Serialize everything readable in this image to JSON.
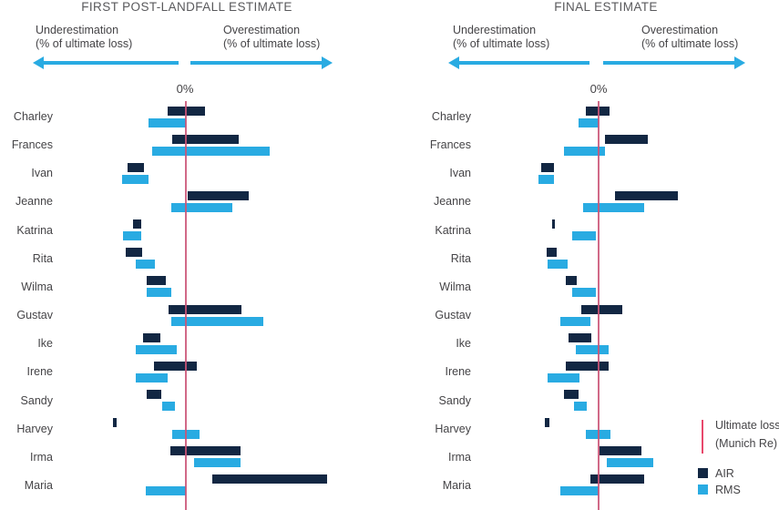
{
  "colors": {
    "air": "#122743",
    "rms": "#29abe2",
    "arrow": "#29abe2",
    "ultimate_loss_line": "#e8486b",
    "axis_zero_line": "#cb5476",
    "title_text": "#59595c",
    "label_text": "#454447"
  },
  "legend": {
    "ultimate_loss_line1": "Ultimate loss",
    "ultimate_loss_line2": "(Munich Re)",
    "air_label": "AIR",
    "rms_label": "RMS"
  },
  "chart_data": [
    {
      "type": "bar",
      "variant": "horizontal-diverging",
      "title": "FIRST POST-LANDFALL ESTIMATE",
      "zero_label": "0%",
      "axis_label_left": [
        "Underestimation",
        "(% of ultimate loss)"
      ],
      "axis_label_right": [
        "Overestimation",
        "(% of ultimate loss)"
      ],
      "unit_note": "bar extents as offsets from the 0% axis, measured in screen px; negative = underestimation, positive = overestimation; no numeric tick scale shown",
      "categories": [
        "Charley",
        "Frances",
        "Ivan",
        "Jeanne",
        "Katrina",
        "Rita",
        "Wilma",
        "Gustav",
        "Ike",
        "Irene",
        "Sandy",
        "Harvey",
        "Irma",
        "Maria"
      ],
      "series": [
        {
          "name": "AIR",
          "bars": [
            [
              -20,
              21
            ],
            [
              -15,
              58
            ],
            [
              -64,
              -46
            ],
            [
              2,
              69
            ],
            [
              -58,
              -49
            ],
            [
              -66,
              -48
            ],
            [
              -43,
              -22
            ],
            [
              -19,
              61
            ],
            [
              -47,
              -28
            ],
            [
              -35,
              12
            ],
            [
              -43,
              -27
            ],
            [
              -80,
              -76
            ],
            [
              -17,
              60
            ],
            [
              29,
              155
            ]
          ]
        },
        {
          "name": "RMS",
          "bars": [
            [
              -41,
              0
            ],
            [
              -37,
              92
            ],
            [
              -70,
              -41
            ],
            [
              -16,
              51
            ],
            [
              -69,
              -49
            ],
            [
              -55,
              -34
            ],
            [
              -43,
              -16
            ],
            [
              -16,
              85
            ],
            [
              -55,
              -10
            ],
            [
              -55,
              -20
            ],
            [
              -26,
              -12
            ],
            [
              -15,
              15
            ],
            [
              9,
              60
            ],
            [
              -44,
              0
            ]
          ]
        }
      ]
    },
    {
      "type": "bar",
      "variant": "horizontal-diverging",
      "title": "FINAL ESTIMATE",
      "zero_label": "0%",
      "axis_label_left": [
        "Underestimation",
        "(% of ultimate loss)"
      ],
      "axis_label_right": [
        "Overestimation",
        "(% of ultimate loss)"
      ],
      "unit_note": "bar extents as offsets from the 0% axis, measured in screen px; negative = underestimation, positive = overestimation; no numeric tick scale shown",
      "categories": [
        "Charley",
        "Frances",
        "Ivan",
        "Jeanne",
        "Katrina",
        "Rita",
        "Wilma",
        "Gustav",
        "Ike",
        "Irene",
        "Sandy",
        "Harvey",
        "Irma",
        "Maria"
      ],
      "series": [
        {
          "name": "AIR",
          "bars": [
            [
              -14,
              12
            ],
            [
              7,
              54
            ],
            [
              -63,
              -49
            ],
            [
              18,
              87
            ],
            [
              -51,
              -48
            ],
            [
              -57,
              -46
            ],
            [
              -36,
              -24
            ],
            [
              -19,
              26
            ],
            [
              -33,
              -8
            ],
            [
              -36,
              11
            ],
            [
              -38,
              -22
            ],
            [
              -59,
              -54
            ],
            [
              1,
              47
            ],
            [
              -9,
              50
            ]
          ]
        },
        {
          "name": "RMS",
          "bars": [
            [
              -22,
              0
            ],
            [
              -38,
              7
            ],
            [
              -66,
              -49
            ],
            [
              -17,
              50
            ],
            [
              -29,
              -3
            ],
            [
              -56,
              -34
            ],
            [
              -29,
              -3
            ],
            [
              -42,
              -9
            ],
            [
              -25,
              11
            ],
            [
              -56,
              -21
            ],
            [
              -27,
              -13
            ],
            [
              -14,
              13
            ],
            [
              9,
              60
            ],
            [
              -42,
              0
            ]
          ]
        }
      ]
    }
  ]
}
